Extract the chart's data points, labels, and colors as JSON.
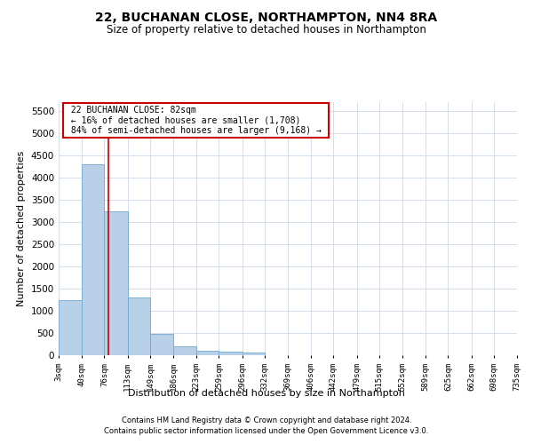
{
  "title": "22, BUCHANAN CLOSE, NORTHAMPTON, NN4 8RA",
  "subtitle": "Size of property relative to detached houses in Northampton",
  "xlabel": "Distribution of detached houses by size in Northampton",
  "ylabel": "Number of detached properties",
  "footer_line1": "Contains HM Land Registry data © Crown copyright and database right 2024.",
  "footer_line2": "Contains public sector information licensed under the Open Government Licence v3.0.",
  "annotation_title": "22 BUCHANAN CLOSE: 82sqm",
  "annotation_line1": "← 16% of detached houses are smaller (1,708)",
  "annotation_line2": "84% of semi-detached houses are larger (9,168) →",
  "property_size": 82,
  "bar_color": "#b8d0e8",
  "bar_edge_color": "#6fa8d0",
  "vline_color": "#cc0000",
  "annotation_box_color": "#cc0000",
  "bins": [
    3,
    40,
    76,
    113,
    149,
    186,
    223,
    259,
    296,
    332,
    369,
    406,
    442,
    479,
    515,
    552,
    589,
    625,
    662,
    698,
    735
  ],
  "bin_labels": [
    "3sqm",
    "40sqm",
    "76sqm",
    "113sqm",
    "149sqm",
    "186sqm",
    "223sqm",
    "259sqm",
    "296sqm",
    "332sqm",
    "369sqm",
    "406sqm",
    "442sqm",
    "479sqm",
    "515sqm",
    "552sqm",
    "589sqm",
    "625sqm",
    "662sqm",
    "698sqm",
    "735sqm"
  ],
  "counts": [
    1250,
    4300,
    3250,
    1300,
    475,
    200,
    100,
    75,
    60,
    0,
    0,
    0,
    0,
    0,
    0,
    0,
    0,
    0,
    0,
    0
  ],
  "ylim": [
    0,
    5700
  ],
  "yticks": [
    0,
    500,
    1000,
    1500,
    2000,
    2500,
    3000,
    3500,
    4000,
    4500,
    5000,
    5500
  ],
  "bg_color": "#ffffff",
  "grid_color": "#cdd8e8"
}
